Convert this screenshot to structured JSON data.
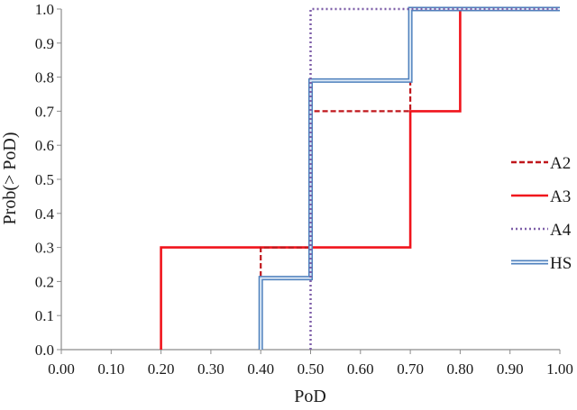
{
  "chart_data": {
    "type": "line",
    "title": "",
    "xlabel": "PoD",
    "ylabel": "Prob(> PoD)",
    "xlim": [
      0,
      1
    ],
    "ylim": [
      0,
      1
    ],
    "grid": false,
    "legend_position": "right",
    "x_ticks": [
      "0.00",
      "0.10",
      "0.20",
      "0.30",
      "0.40",
      "0.50",
      "0.60",
      "0.70",
      "0.80",
      "0.90",
      "1.00"
    ],
    "y_ticks": [
      "0.0",
      "0.1",
      "0.2",
      "0.3",
      "0.4",
      "0.5",
      "0.6",
      "0.7",
      "0.8",
      "0.9",
      "1.0"
    ],
    "series": [
      {
        "name": "A2",
        "style": "dashed",
        "color": "#c0171c",
        "points": [
          [
            0.4,
            0
          ],
          [
            0.4,
            0.3
          ],
          [
            0.5,
            0.3
          ],
          [
            0.5,
            0.7
          ],
          [
            0.7,
            0.7
          ],
          [
            0.7,
            1.0
          ],
          [
            1.0,
            1.0
          ]
        ]
      },
      {
        "name": "A3",
        "style": "solid",
        "color": "#f0141c",
        "points": [
          [
            0.2,
            0
          ],
          [
            0.2,
            0.3
          ],
          [
            0.7,
            0.3
          ],
          [
            0.7,
            0.7
          ],
          [
            0.8,
            0.7
          ],
          [
            0.8,
            1.0
          ],
          [
            1.0,
            1.0
          ]
        ]
      },
      {
        "name": "A4",
        "style": "dotted",
        "color": "#7e5fa8",
        "points": [
          [
            0.5,
            0
          ],
          [
            0.5,
            1.0
          ],
          [
            1.0,
            1.0
          ]
        ]
      },
      {
        "name": "HS",
        "style": "double",
        "color": "#4f81bd",
        "points": [
          [
            0.4,
            0
          ],
          [
            0.4,
            0.21
          ],
          [
            0.5,
            0.21
          ],
          [
            0.5,
            0.79
          ],
          [
            0.7,
            0.79
          ],
          [
            0.7,
            1.0
          ],
          [
            1.0,
            1.0
          ]
        ]
      }
    ]
  }
}
